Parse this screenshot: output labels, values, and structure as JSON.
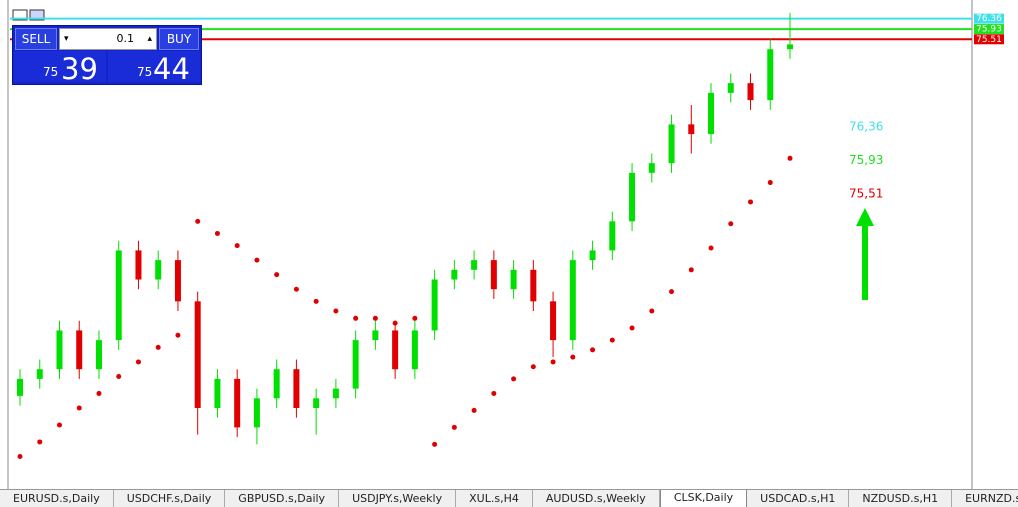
{
  "chart_data": {
    "type": "candlestick",
    "open": [
      60.8,
      61.5,
      61.9,
      63.5,
      61.9,
      63.1,
      66.8,
      65.6,
      66.4,
      64.7,
      60.3,
      61.5,
      59.5,
      60.7,
      61.9,
      60.3,
      60.7,
      61.1,
      63.1,
      63.5,
      61.9,
      63.5,
      65.6,
      66.0,
      66.4,
      65.2,
      66.0,
      64.7,
      63.1,
      66.4,
      66.8,
      68.0,
      70.0,
      70.4,
      72.0,
      71.6,
      73.3,
      73.7,
      73.0,
      75.1
    ],
    "high": [
      61.9,
      62.3,
      63.9,
      63.9,
      63.5,
      67.2,
      67.2,
      66.8,
      66.8,
      65.1,
      61.9,
      61.9,
      61.1,
      62.3,
      62.3,
      61.1,
      61.5,
      63.5,
      63.9,
      63.9,
      63.9,
      66.0,
      66.4,
      66.8,
      66.8,
      66.4,
      66.4,
      65.1,
      66.8,
      67.2,
      68.4,
      70.4,
      70.8,
      72.4,
      72.8,
      73.7,
      74.1,
      74.1,
      75.5,
      76.6
    ],
    "low": [
      60.4,
      61.1,
      61.5,
      61.5,
      61.5,
      62.7,
      65.2,
      65.2,
      64.3,
      59.2,
      59.9,
      59.1,
      58.8,
      60.3,
      59.9,
      59.2,
      60.3,
      60.7,
      62.7,
      61.5,
      61.5,
      63.1,
      65.2,
      65.6,
      64.8,
      64.8,
      64.3,
      62.4,
      62.7,
      66.0,
      66.4,
      67.6,
      69.6,
      70.0,
      70.8,
      71.2,
      72.9,
      72.6,
      72.6,
      74.7
    ],
    "close": [
      61.5,
      61.9,
      63.5,
      61.9,
      63.1,
      66.8,
      65.6,
      66.4,
      64.7,
      60.3,
      61.5,
      59.5,
      60.7,
      61.9,
      60.3,
      60.7,
      61.1,
      63.1,
      63.5,
      61.9,
      63.5,
      65.6,
      66.0,
      66.4,
      65.2,
      66.0,
      64.7,
      63.1,
      66.4,
      66.8,
      68.0,
      70.0,
      70.4,
      72.0,
      71.6,
      73.3,
      73.7,
      73.0,
      75.1,
      75.3
    ],
    "sar": [
      58.3,
      58.9,
      59.6,
      60.3,
      60.9,
      61.6,
      62.2,
      62.8,
      63.3,
      68.0,
      67.5,
      67.0,
      66.4,
      65.8,
      65.2,
      64.7,
      64.3,
      64.0,
      64.0,
      63.8,
      64.0,
      58.8,
      59.5,
      60.2,
      60.9,
      61.5,
      62.0,
      62.2,
      62.4,
      62.7,
      63.1,
      63.6,
      64.3,
      65.1,
      66.0,
      66.9,
      67.9,
      68.8,
      69.6,
      70.6
    ],
    "up_color": "#00e000",
    "down_color": "#e00000",
    "sar_color": "#e00000",
    "ylim": [
      57,
      76.8
    ],
    "levels": [
      {
        "value": 76.36,
        "label": "76.36",
        "text": "76,36",
        "color": "#40e0e8"
      },
      {
        "value": 75.93,
        "label": "75.93",
        "text": "75,93",
        "color": "#20e020"
      },
      {
        "value": 75.51,
        "label": "75.51",
        "text": "75,51",
        "color": "#e00000"
      }
    ]
  },
  "trade_panel": {
    "sell": "SELL",
    "buy": "BUY",
    "lot": "0.1",
    "bid_prefix": "75",
    "bid_digits": "39",
    "ask_prefix": "75",
    "ask_digits": "44"
  },
  "tabs": [
    "EURUSD.s,Daily",
    "USDCHF.s,Daily",
    "GBPUSD.s,Daily",
    "USDJPY.s,Weekly",
    "XUL.s,H4",
    "AUDUSD.s,Weekly",
    "CLSK,Daily",
    "USDCAD.s,H1",
    "NZDUSD.s,H1",
    "EURNZD.s,D"
  ],
  "active_tab": 6
}
